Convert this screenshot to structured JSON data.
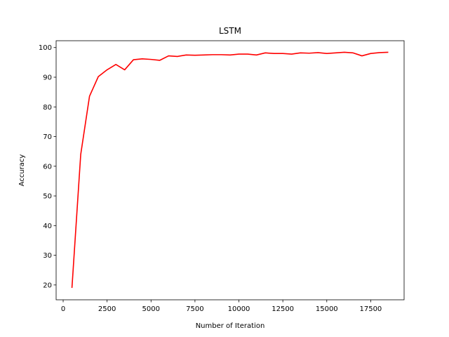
{
  "chart_data": {
    "type": "line",
    "title": "LSTM",
    "xlabel": "Number of Iteration",
    "ylabel": "Accuracy",
    "xlim": [
      -400,
      19400
    ],
    "ylim": [
      15.0,
      102.3
    ],
    "xticks": [
      0,
      2500,
      5000,
      7500,
      10000,
      12500,
      15000,
      17500
    ],
    "yticks": [
      20,
      30,
      40,
      50,
      60,
      70,
      80,
      90,
      100
    ],
    "grid": false,
    "series": [
      {
        "color": "#ff0000",
        "x": [
          500,
          1000,
          1500,
          2000,
          2500,
          3000,
          3500,
          4000,
          4500,
          5000,
          5500,
          6000,
          6500,
          7000,
          7500,
          8000,
          8500,
          9000,
          9500,
          10000,
          10500,
          11000,
          11500,
          12000,
          12500,
          13000,
          13500,
          14000,
          14500,
          15000,
          15500,
          16000,
          16500,
          17000,
          17500,
          18000,
          18500
        ],
        "y": [
          19.0,
          64.0,
          83.6,
          90.2,
          92.5,
          94.3,
          92.5,
          95.9,
          96.2,
          96.0,
          95.7,
          97.2,
          97.0,
          97.5,
          97.4,
          97.5,
          97.6,
          97.6,
          97.5,
          97.8,
          97.8,
          97.5,
          98.2,
          98.0,
          98.0,
          97.8,
          98.2,
          98.1,
          98.3,
          98.0,
          98.2,
          98.4,
          98.2,
          97.2,
          98.0,
          98.3,
          98.4
        ]
      }
    ]
  }
}
